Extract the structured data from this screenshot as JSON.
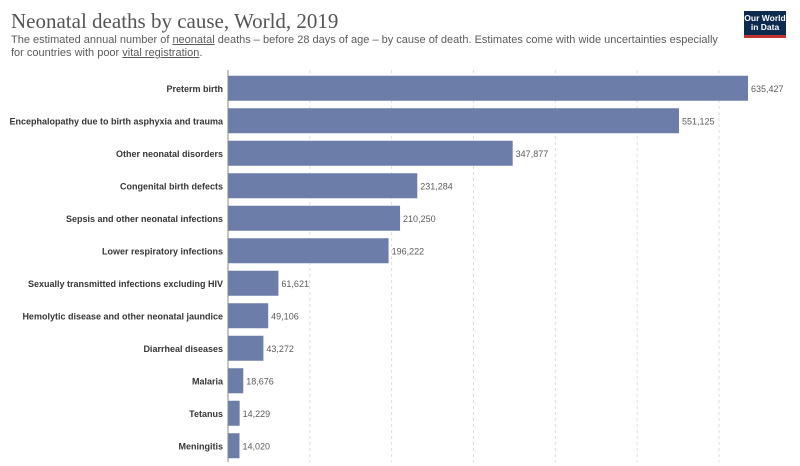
{
  "header": {
    "title": "Neonatal deaths by cause, World, 2019",
    "subtitle_parts": [
      "The estimated annual number of ",
      "neonatal",
      " deaths – before 28 days of age – by cause of death. Estimates come with wide uncertainties especially for countries with poor ",
      "vital registration",
      "."
    ]
  },
  "logo": {
    "line1": "Our World",
    "line2": "in Data"
  },
  "colors": {
    "bar": "#6b7da8",
    "grid": "#dddddd",
    "axis": "#888888"
  },
  "chart_data": {
    "type": "bar",
    "orientation": "horizontal",
    "categories": [
      "Preterm birth",
      "Encephalopathy due to birth asphyxia and trauma",
      "Other neonatal disorders",
      "Congenital birth defects",
      "Sepsis and other neonatal infections",
      "Lower respiratory infections",
      "Sexually transmitted infections excluding HIV",
      "Hemolytic disease and other neonatal jaundice",
      "Diarrheal diseases",
      "Malaria",
      "Tetanus",
      "Meningitis"
    ],
    "values": [
      635427,
      551125,
      347877,
      231284,
      210250,
      196222,
      61621,
      49106,
      43272,
      18676,
      14229,
      14020
    ],
    "value_labels": [
      "635,427",
      "551,125",
      "347,877",
      "231,284",
      "210,250",
      "196,222",
      "61,621",
      "49,106",
      "43,272",
      "18,676",
      "14,229",
      "14,020"
    ],
    "xlim": [
      0,
      635427
    ],
    "grid": true,
    "title": "Neonatal deaths by cause, World, 2019"
  }
}
